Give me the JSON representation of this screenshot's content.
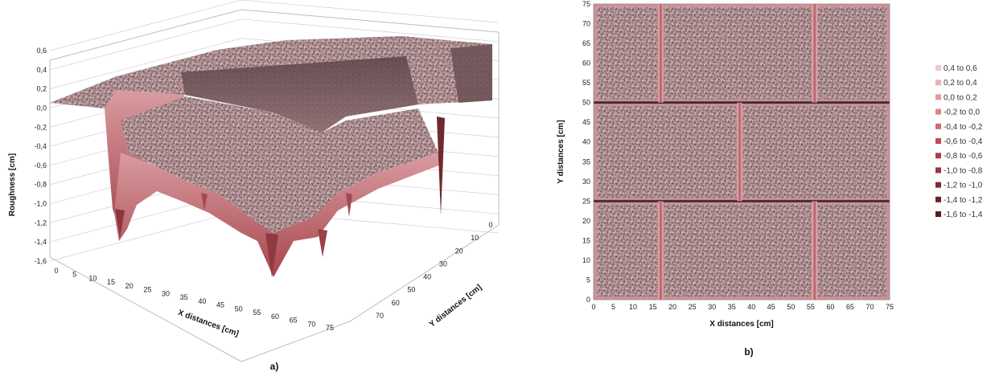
{
  "chart_data": [
    {
      "panel_label": "a)",
      "type": "surface",
      "xlabel": "X distances [cm]",
      "ylabel": "Y distances [cm]",
      "zlabel": "Roughness [cm]",
      "x_ticks": [
        "0",
        "5",
        "10",
        "15",
        "20",
        "25",
        "30",
        "35",
        "40",
        "45",
        "50",
        "55",
        "60",
        "65",
        "70",
        "75"
      ],
      "y_ticks": [
        "0",
        "10",
        "20",
        "30",
        "40",
        "50",
        "60",
        "70"
      ],
      "z_ticks": [
        "0,6",
        "0,4",
        "0,2",
        "0,0",
        "-0,2",
        "-0,4",
        "-0,6",
        "-0,8",
        "-1,0",
        "-1,2",
        "-1,4",
        "-1,6"
      ],
      "xlim": [
        0,
        75
      ],
      "ylim": [
        0,
        75
      ],
      "zlim": [
        -1.6,
        0.6
      ],
      "grid": true
    },
    {
      "panel_label": "b)",
      "type": "heatmap",
      "xlabel": "X distances [cm]",
      "ylabel": "Y distances [cm]",
      "x_ticks": [
        "0",
        "5",
        "10",
        "15",
        "20",
        "25",
        "30",
        "35",
        "40",
        "45",
        "50",
        "55",
        "60",
        "65",
        "70",
        "75"
      ],
      "y_ticks": [
        "0",
        "5",
        "10",
        "15",
        "20",
        "25",
        "30",
        "35",
        "40",
        "45",
        "50",
        "55",
        "60",
        "65",
        "70",
        "75"
      ],
      "xlim": [
        0,
        75
      ],
      "ylim": [
        0,
        75
      ],
      "joints": {
        "horizontal_y": [
          25,
          50
        ],
        "vertical_bottom_x": [
          17,
          56
        ],
        "vertical_middle_x": [
          37
        ],
        "vertical_top_x": [
          17,
          56
        ]
      },
      "legend_position": "right",
      "legend": [
        {
          "label": "0,4 to 0,6",
          "color": "#f2c8cb"
        },
        {
          "label": "0,2 to 0,4",
          "color": "#eab2b6"
        },
        {
          "label": "0,0 to 0,2",
          "color": "#df9ba0"
        },
        {
          "label": "-0,2 to 0,0",
          "color": "#d9858b"
        },
        {
          "label": "-0,4 to -0,2",
          "color": "#cf6c72"
        },
        {
          "label": "-0,6 to -0,4",
          "color": "#b94e55"
        },
        {
          "label": "-0,8 to -0,6",
          "color": "#a94048"
        },
        {
          "label": "-1,0 to -0,8",
          "color": "#97353c"
        },
        {
          "label": "-1,2 to -1,0",
          "color": "#7d2a30"
        },
        {
          "label": "-1,4 to -1,2",
          "color": "#6a2126"
        },
        {
          "label": "-1,6 to -1,4",
          "color": "#581a1e"
        }
      ]
    }
  ]
}
